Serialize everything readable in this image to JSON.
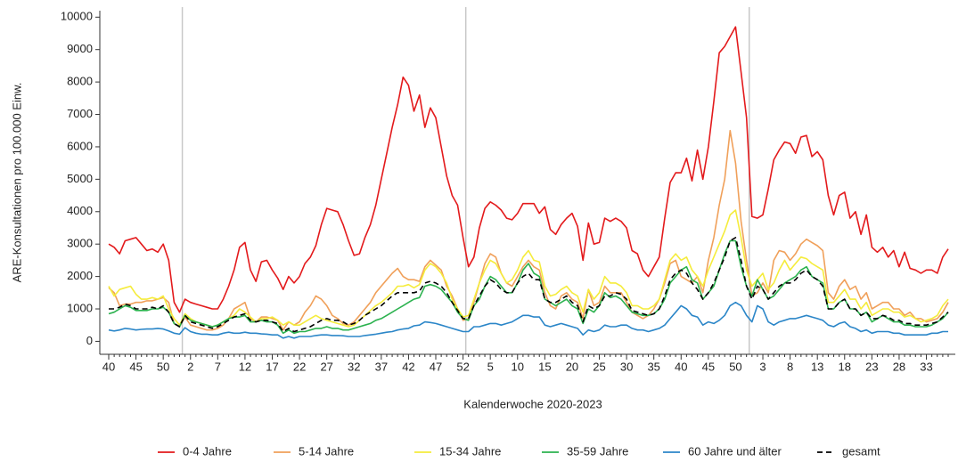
{
  "chart_data": {
    "type": "line",
    "y_label": "ARE-Konsultationen pro 100.000 Einw.",
    "x_label": "Kalenderwoche 2020-2023",
    "categories": [
      "40",
      null,
      null,
      null,
      null,
      "45",
      null,
      null,
      null,
      null,
      "50",
      null,
      null,
      null,
      null,
      "2",
      null,
      null,
      null,
      null,
      "7",
      null,
      null,
      null,
      null,
      "12",
      null,
      null,
      null,
      null,
      "17",
      null,
      null,
      null,
      null,
      "22",
      null,
      null,
      null,
      null,
      "27",
      null,
      null,
      null,
      null,
      "32",
      null,
      null,
      null,
      null,
      "37",
      null,
      null,
      null,
      null,
      "42",
      null,
      null,
      null,
      null,
      "47",
      null,
      null,
      null,
      null,
      "52",
      null,
      null,
      null,
      null,
      "5",
      null,
      null,
      null,
      null,
      "10",
      null,
      null,
      null,
      null,
      "15",
      null,
      null,
      null,
      null,
      "20",
      null,
      null,
      null,
      null,
      "25",
      null,
      null,
      null,
      null,
      "30",
      null,
      null,
      null,
      null,
      "35",
      null,
      null,
      null,
      null,
      "40",
      null,
      null,
      null,
      null,
      "45",
      null,
      null,
      null,
      null,
      "50",
      null,
      null,
      null,
      null,
      "3",
      null,
      null,
      null,
      null,
      "8",
      null,
      null,
      null,
      null,
      "13",
      null,
      null,
      null,
      null,
      "18",
      null,
      null,
      null,
      null,
      "23",
      null,
      null,
      null,
      null,
      "28",
      null,
      null,
      null,
      null,
      "33",
      null,
      null,
      null,
      null
    ],
    "ylim": [
      -400,
      10200
    ],
    "yticks": [
      0,
      1000,
      2000,
      3000,
      4000,
      5000,
      6000,
      7000,
      8000,
      9000,
      10000
    ],
    "legend": "bottom",
    "series": [
      {
        "name": "0-4 Jahre",
        "color": "#e31a1c",
        "dashed": false,
        "values": [
          3000,
          2900,
          2700,
          3100,
          3150,
          3200,
          3000,
          2800,
          2850,
          2750,
          3000,
          2500,
          1200,
          900,
          1300,
          1200,
          1150,
          1100,
          1050,
          1000,
          1000,
          1300,
          1700,
          2200,
          2900,
          3050,
          2200,
          1850,
          2450,
          2500,
          2200,
          1950,
          1600,
          2000,
          1800,
          2000,
          2400,
          2600,
          2950,
          3600,
          4100,
          4050,
          4000,
          3600,
          3100,
          2650,
          2700,
          3200,
          3600,
          4200,
          5000,
          5800,
          6600,
          7300,
          8150,
          7900,
          7100,
          7600,
          6600,
          7200,
          6900,
          6000,
          5100,
          4500,
          4200,
          3200,
          2300,
          2600,
          3500,
          4100,
          4300,
          4200,
          4050,
          3800,
          3750,
          3950,
          4250,
          4250,
          4250,
          3950,
          4150,
          3450,
          3300,
          3600,
          3800,
          3950,
          3550,
          2500,
          3650,
          3000,
          3050,
          3800,
          3700,
          3800,
          3700,
          3500,
          2800,
          2700,
          2200,
          2000,
          2300,
          2600,
          3800,
          4900,
          5200,
          5200,
          5650,
          4950,
          5900,
          5000,
          6000,
          7400,
          8900,
          9100,
          9400,
          9700,
          8300,
          6900,
          3850,
          3800,
          3900,
          4700,
          5600,
          5900,
          6150,
          6100,
          5800,
          6300,
          6350,
          5700,
          5850,
          5600,
          4500,
          3900,
          4500,
          4600,
          3800,
          4000,
          3300,
          3900,
          2900,
          2750,
          2900,
          2600,
          2800,
          2300,
          2750,
          2250,
          2200,
          2100,
          2200,
          2200,
          2100,
          2600,
          2850
        ]
      },
      {
        "name": "5-14 Jahre",
        "color": "#f0a05a",
        "dashed": false,
        "values": [
          1650,
          1500,
          1100,
          1150,
          1150,
          1200,
          1200,
          1250,
          1250,
          1300,
          1350,
          1200,
          550,
          450,
          750,
          500,
          450,
          400,
          350,
          350,
          400,
          500,
          700,
          1000,
          1100,
          1200,
          700,
          600,
          750,
          750,
          700,
          650,
          350,
          600,
          500,
          600,
          900,
          1100,
          1400,
          1300,
          1100,
          800,
          700,
          550,
          500,
          600,
          800,
          1000,
          1200,
          1500,
          1700,
          1900,
          2100,
          2250,
          2000,
          1900,
          1900,
          1850,
          2300,
          2500,
          2350,
          2200,
          1700,
          1400,
          1000,
          650,
          700,
          1200,
          1800,
          2400,
          2700,
          2600,
          2100,
          1800,
          1700,
          2000,
          2300,
          2500,
          2300,
          2200,
          1500,
          1100,
          1000,
          1400,
          1500,
          1300,
          1200,
          700,
          1600,
          1100,
          1200,
          1700,
          1500,
          1500,
          1500,
          1200,
          900,
          800,
          700,
          800,
          1000,
          1300,
          1800,
          2400,
          2500,
          2000,
          1900,
          1800,
          2000,
          1500,
          2500,
          3200,
          4200,
          5000,
          6500,
          5500,
          3700,
          2500,
          1400,
          1500,
          1800,
          1500,
          2500,
          2800,
          2750,
          2500,
          2700,
          3000,
          3150,
          3050,
          2950,
          2800,
          1500,
          1300,
          1700,
          1900,
          1600,
          1700,
          1300,
          1500,
          1000,
          1100,
          1200,
          1200,
          1000,
          1000,
          800,
          900,
          700,
          700,
          600,
          650,
          700,
          900,
          1200
        ]
      },
      {
        "name": "15-34 Jahre",
        "color": "#f5ec3c",
        "dashed": false,
        "values": [
          1700,
          1400,
          1600,
          1650,
          1700,
          1450,
          1300,
          1300,
          1350,
          1300,
          1400,
          1000,
          700,
          500,
          850,
          700,
          600,
          550,
          500,
          450,
          500,
          600,
          700,
          800,
          1000,
          900,
          750,
          600,
          700,
          700,
          750,
          650,
          500,
          600,
          500,
          500,
          600,
          700,
          800,
          700,
          650,
          600,
          550,
          500,
          450,
          500,
          650,
          800,
          950,
          1100,
          1200,
          1350,
          1500,
          1700,
          1700,
          1750,
          1650,
          1750,
          2200,
          2400,
          2300,
          2100,
          1800,
          1300,
          1000,
          750,
          800,
          1300,
          1800,
          2200,
          2500,
          2400,
          2100,
          1800,
          1900,
          2200,
          2600,
          2800,
          2500,
          2450,
          1700,
          1400,
          1450,
          1600,
          1700,
          1500,
          1400,
          900,
          1600,
          1300,
          1500,
          2000,
          1800,
          1800,
          1700,
          1500,
          1100,
          1100,
          1000,
          1000,
          1100,
          1300,
          1900,
          2500,
          2700,
          2500,
          2600,
          2200,
          2000,
          1700,
          2200,
          2600,
          3000,
          3400,
          3900,
          4050,
          3200,
          2200,
          1700,
          1900,
          2100,
          1600,
          1800,
          2200,
          2500,
          2200,
          2400,
          2600,
          2550,
          2400,
          2300,
          2200,
          1200,
          1200,
          1400,
          1600,
          1300,
          1300,
          1000,
          1200,
          800,
          900,
          1000,
          1000,
          900,
          900,
          750,
          800,
          700,
          600,
          650,
          700,
          800,
          1100,
          1300
        ]
      },
      {
        "name": "35-59 Jahre",
        "color": "#2cb24f",
        "dashed": false,
        "values": [
          850,
          900,
          1000,
          1100,
          1050,
          950,
          950,
          950,
          1000,
          1000,
          1050,
          900,
          550,
          450,
          800,
          650,
          600,
          550,
          500,
          450,
          500,
          600,
          700,
          750,
          750,
          800,
          600,
          600,
          650,
          600,
          600,
          500,
          250,
          350,
          250,
          300,
          300,
          350,
          400,
          400,
          450,
          400,
          400,
          350,
          350,
          400,
          450,
          500,
          550,
          650,
          700,
          800,
          900,
          1000,
          1100,
          1200,
          1300,
          1350,
          1700,
          1750,
          1700,
          1600,
          1400,
          1200,
          900,
          700,
          650,
          1100,
          1300,
          1700,
          2000,
          1900,
          1700,
          1500,
          1500,
          1800,
          2200,
          2400,
          2100,
          2000,
          1300,
          1200,
          1100,
          1200,
          1300,
          1100,
          1000,
          550,
          1000,
          900,
          1100,
          1500,
          1350,
          1400,
          1300,
          1100,
          900,
          850,
          800,
          800,
          850,
          1000,
          1300,
          1800,
          2000,
          2200,
          2300,
          1900,
          1800,
          1300,
          1500,
          1700,
          2200,
          2700,
          3100,
          3100,
          2300,
          1700,
          1400,
          1900,
          1600,
          1300,
          1400,
          1600,
          1800,
          1900,
          2000,
          2200,
          2300,
          2000,
          1900,
          1800,
          1000,
          1000,
          1200,
          1300,
          1000,
          1000,
          800,
          900,
          600,
          700,
          800,
          700,
          600,
          600,
          500,
          500,
          450,
          450,
          450,
          500,
          600,
          700,
          900
        ]
      },
      {
        "name": "60 Jahre und älter",
        "color": "#2b86c8",
        "dashed": false,
        "values": [
          350,
          320,
          350,
          400,
          380,
          350,
          370,
          380,
          380,
          400,
          380,
          320,
          250,
          220,
          420,
          300,
          250,
          220,
          220,
          200,
          200,
          250,
          280,
          250,
          250,
          280,
          250,
          250,
          230,
          220,
          200,
          200,
          100,
          150,
          100,
          150,
          150,
          150,
          180,
          200,
          200,
          180,
          180,
          170,
          150,
          150,
          150,
          180,
          200,
          220,
          250,
          280,
          300,
          350,
          380,
          400,
          480,
          500,
          600,
          580,
          550,
          500,
          450,
          400,
          350,
          300,
          300,
          450,
          450,
          500,
          550,
          550,
          500,
          550,
          600,
          700,
          800,
          800,
          750,
          750,
          500,
          450,
          500,
          550,
          500,
          450,
          400,
          200,
          350,
          300,
          350,
          500,
          450,
          450,
          500,
          500,
          400,
          350,
          350,
          300,
          350,
          400,
          500,
          700,
          900,
          1100,
          1000,
          800,
          750,
          500,
          600,
          550,
          650,
          800,
          1100,
          1200,
          1100,
          800,
          600,
          1100,
          1000,
          600,
          500,
          600,
          650,
          700,
          700,
          750,
          800,
          750,
          700,
          650,
          500,
          450,
          550,
          600,
          450,
          400,
          300,
          350,
          250,
          300,
          300,
          300,
          250,
          250,
          200,
          200,
          200,
          200,
          200,
          250,
          250,
          300,
          300
        ]
      },
      {
        "name": "gesamt",
        "color": "#000000",
        "dashed": true,
        "values": [
          1000,
          1000,
          1050,
          1150,
          1100,
          1000,
          1000,
          1000,
          1050,
          1000,
          1100,
          900,
          550,
          450,
          800,
          600,
          550,
          500,
          450,
          400,
          450,
          550,
          650,
          750,
          800,
          850,
          650,
          600,
          650,
          650,
          600,
          550,
          300,
          400,
          300,
          350,
          400,
          450,
          550,
          650,
          700,
          650,
          650,
          600,
          500,
          550,
          650,
          800,
          900,
          1000,
          1100,
          1250,
          1400,
          1500,
          1500,
          1500,
          1500,
          1550,
          1800,
          1850,
          1800,
          1700,
          1500,
          1200,
          950,
          700,
          700,
          1100,
          1400,
          1700,
          1900,
          1800,
          1600,
          1500,
          1500,
          1800,
          2000,
          2100,
          1900,
          1900,
          1300,
          1200,
          1200,
          1300,
          1400,
          1200,
          1100,
          600,
          1100,
          1000,
          1100,
          1400,
          1400,
          1500,
          1450,
          1300,
          950,
          900,
          850,
          800,
          850,
          1000,
          1400,
          1900,
          2100,
          2200,
          2100,
          1800,
          1600,
          1300,
          1500,
          1800,
          2200,
          2600,
          3100,
          3200,
          2500,
          1700,
          1300,
          1700,
          1600,
          1300,
          1500,
          1700,
          1800,
          1800,
          1900,
          2100,
          2200,
          2000,
          1900,
          1700,
          1000,
          1000,
          1200,
          1300,
          1000,
          1000,
          800,
          900,
          700,
          700,
          800,
          750,
          650,
          650,
          550,
          550,
          500,
          500,
          500,
          550,
          600,
          750,
          900
        ]
      }
    ]
  }
}
